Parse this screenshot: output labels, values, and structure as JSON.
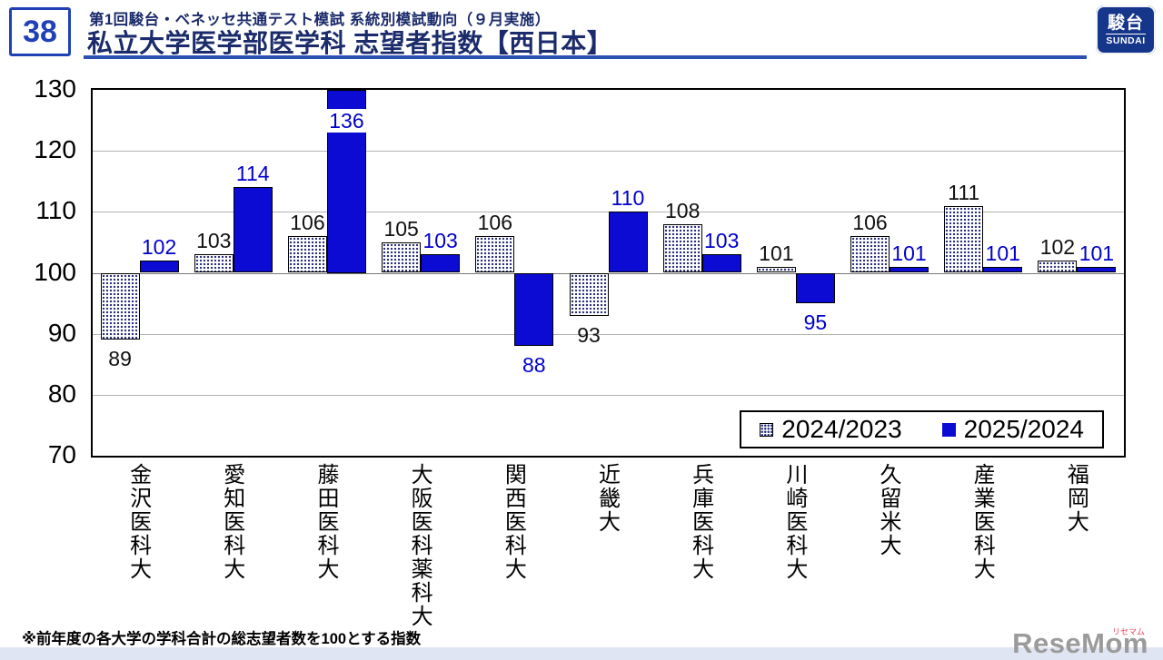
{
  "header": {
    "page_number": "38",
    "subtitle": "第1回駿台・ベネッセ共通テスト模試 系統別模試動向（９月実施）",
    "title": "私立大学医学部医学科 志望者指数【西日本】",
    "logo": {
      "jp": "駿台",
      "en": "SUNDAI"
    }
  },
  "chart_data": {
    "type": "bar",
    "title": "私立大学医学部医学科 志望者指数【西日本】",
    "categories": [
      "金沢医科大",
      "愛知医科大",
      "藤田医科大",
      "大阪医科薬科大",
      "関西医科大",
      "近畿大",
      "兵庫医科大",
      "川崎医科大",
      "久留米大",
      "産業医科大",
      "福岡大"
    ],
    "series": [
      {
        "name": "2024/2023",
        "style": "dotted",
        "color": "#ffffff",
        "pattern_color": "#2a2f7e",
        "values": [
          89,
          103,
          106,
          105,
          106,
          93,
          108,
          101,
          106,
          111,
          102
        ]
      },
      {
        "name": "2025/2024",
        "style": "solid",
        "color": "#0b0bd3",
        "values": [
          102,
          114,
          136,
          103,
          88,
          110,
          103,
          95,
          101,
          101,
          101
        ]
      }
    ],
    "baseline": 100,
    "ylim": [
      70,
      130
    ],
    "ytick_step": 10,
    "yticks": [
      70,
      80,
      90,
      100,
      110,
      120,
      130
    ],
    "grid": true,
    "legend_position": "bottom-right"
  },
  "footnote": "※前年度の各大学の学科合計の総志望者数を100とする指数",
  "watermark": {
    "name": "ReseMom",
    "ruby": "リセマム"
  },
  "colors": {
    "bar_solid_blue": "#0b0bd3",
    "label_blue": "#0000cc",
    "label_black": "#111111",
    "title_navy": "#1b2b6b",
    "rule_blue": "#2b50b4",
    "logo_blue": "#16368c",
    "footer_strip": "#dfe5f2"
  }
}
